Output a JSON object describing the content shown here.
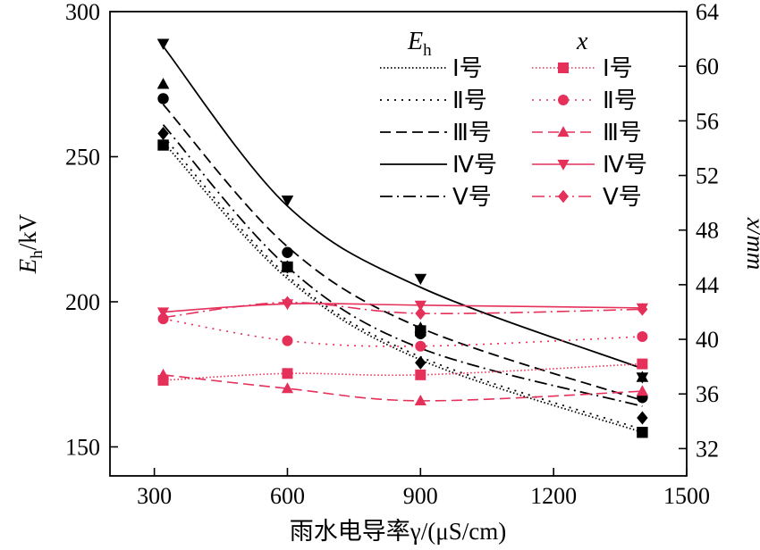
{
  "chart_data": {
    "type": "line",
    "x": [
      320,
      600,
      900,
      1400
    ],
    "xlabel": "雨水电导率γ/(μS/cm)",
    "xlim": [
      200,
      1500
    ],
    "xticks": [
      "300",
      "600",
      "900",
      "1200",
      "1500"
    ],
    "left_axis": {
      "label_main": "E",
      "label_sub": "h",
      "label_unit": "/kV",
      "ylim": [
        140,
        300
      ],
      "ticks": [
        "150",
        "200",
        "250",
        "300"
      ]
    },
    "right_axis": {
      "label": "x/mm",
      "ylim": [
        30,
        64
      ],
      "ticks": [
        "32",
        "36",
        "40",
        "44",
        "48",
        "52",
        "56",
        "60",
        "64"
      ]
    },
    "legend": {
      "placement": "top-right",
      "eh_heading": "E",
      "eh_heading_sub": "h",
      "x_heading": "x",
      "eh_labels": [
        "Ⅰ号",
        "Ⅱ号",
        "Ⅲ号",
        "Ⅳ号",
        "Ⅴ号"
      ],
      "x_labels": [
        "Ⅰ号",
        "Ⅱ号",
        "Ⅲ号",
        "Ⅳ号",
        "Ⅴ号"
      ]
    },
    "eh_series": [
      {
        "legend": "Ⅰ号",
        "marker": "square",
        "dash": "1.5 2.5",
        "values": [
          254,
          212,
          190,
          155
        ],
        "fit": [
          255,
          208,
          180,
          155
        ]
      },
      {
        "legend": "Ⅱ号",
        "marker": "circle",
        "dash": "2 6",
        "values": [
          270,
          217,
          189,
          167
        ],
        "fit": [
          257,
          209,
          181,
          156
        ]
      },
      {
        "legend": "Ⅲ号",
        "marker": "triangle-up",
        "dash": "12 6",
        "values": [
          275,
          212,
          191,
          174
        ],
        "fit": [
          268,
          219,
          191,
          166
        ]
      },
      {
        "legend": "Ⅳ号",
        "marker": "triangle-down",
        "dash": "",
        "values": [
          289,
          235,
          208,
          174
        ],
        "fit": [
          288,
          233,
          205,
          177
        ]
      },
      {
        "legend": "Ⅴ号",
        "marker": "diamond",
        "dash": "14 5 2 5",
        "values": [
          258,
          212,
          179,
          160
        ],
        "fit": [
          261,
          212,
          184,
          164
        ]
      }
    ],
    "x_series": [
      {
        "legend": "Ⅰ号",
        "marker": "square",
        "dash": "1.5 2.5",
        "values": [
          37.0,
          37.5,
          37.4,
          38.2
        ]
      },
      {
        "legend": "Ⅱ号",
        "marker": "circle",
        "dash": "2 6",
        "values": [
          41.5,
          39.9,
          39.5,
          40.2
        ]
      },
      {
        "legend": "Ⅲ号",
        "marker": "triangle-up",
        "dash": "12 6",
        "values": [
          37.4,
          36.4,
          35.5,
          36.2
        ]
      },
      {
        "legend": "Ⅳ号",
        "marker": "triangle-down",
        "dash": "",
        "values": [
          42.0,
          42.6,
          42.5,
          42.3
        ]
      },
      {
        "legend": "Ⅴ号",
        "marker": "diamond",
        "dash": "14 5 2 5",
        "values": [
          41.6,
          42.7,
          41.9,
          42.2
        ]
      }
    ],
    "colors": {
      "eh": "#000000",
      "x": "#e5305a"
    }
  }
}
